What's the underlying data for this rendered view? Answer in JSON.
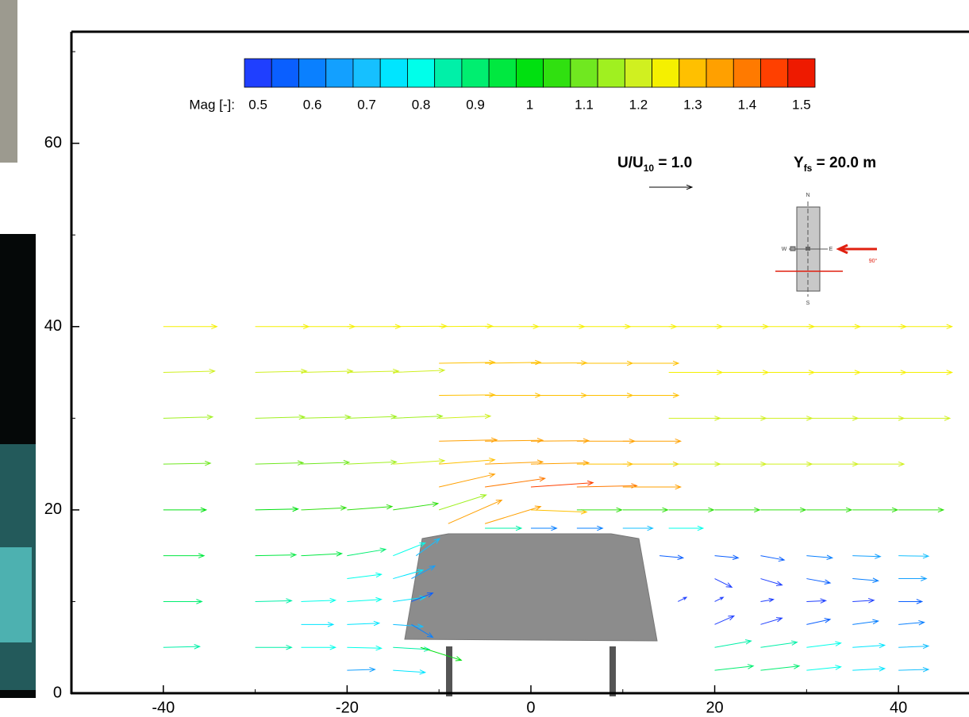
{
  "chart_data": {
    "type": "quiver",
    "xlim": [
      -50,
      47.5
    ],
    "ylim": [
      0,
      72
    ],
    "xticks": [
      -40,
      -20,
      0,
      20,
      40
    ],
    "yticks": [
      0,
      20,
      40,
      60
    ],
    "xminor": [
      -30,
      -10,
      10,
      30
    ],
    "yminor": [
      10,
      30,
      50,
      70
    ],
    "colorbar": {
      "label": "Mag [-]:",
      "lim": [
        0.475,
        1.525
      ],
      "ticks": [
        0.5,
        0.6,
        0.7,
        0.8,
        0.9,
        1,
        1.1,
        1.2,
        1.3,
        1.4,
        1.5
      ],
      "colors": [
        "#1f3fff",
        "#0a5fff",
        "#0a80ff",
        "#13a0ff",
        "#16c0ff",
        "#00e5ff",
        "#00ffea",
        "#00f0a8",
        "#00ee70",
        "#00e840",
        "#00e010",
        "#30e010",
        "#70e820",
        "#a0f020",
        "#d0f020",
        "#f5f000",
        "#ffc000",
        "#ffa000",
        "#ff7a00",
        "#ff4000",
        "#ee1a00"
      ]
    },
    "reference": {
      "label": [
        "U/U",
        "10",
        " = 1.0"
      ],
      "value": 1.0
    },
    "elevation_label": [
      "Y",
      "fs",
      " = 20.0 m"
    ],
    "inset": {
      "labels": [
        "N",
        "W",
        "E",
        "S",
        "90°"
      ]
    },
    "vectors": [
      [
        -40,
        40,
        1.25,
        0
      ],
      [
        -30,
        40,
        1.25,
        0
      ],
      [
        -25,
        40,
        1.25,
        0
      ],
      [
        -20,
        40,
        1.25,
        0
      ],
      [
        -15,
        40,
        1.25,
        0.01
      ],
      [
        -10,
        40,
        1.25,
        0.01
      ],
      [
        -5,
        40,
        1.25,
        0
      ],
      [
        0,
        40,
        1.25,
        0
      ],
      [
        5,
        40,
        1.25,
        0
      ],
      [
        10,
        40,
        1.25,
        0
      ],
      [
        15,
        40,
        1.25,
        0
      ],
      [
        20,
        40,
        1.25,
        0
      ],
      [
        25,
        40,
        1.25,
        0
      ],
      [
        30,
        40,
        1.25,
        0
      ],
      [
        35,
        40,
        1.25,
        0
      ],
      [
        40,
        40,
        1.25,
        0
      ],
      [
        -40,
        35,
        1.2,
        0.03
      ],
      [
        -30,
        35,
        1.2,
        0.03
      ],
      [
        -25,
        35,
        1.2,
        0.03
      ],
      [
        -20,
        35,
        1.2,
        0.03
      ],
      [
        -15,
        35,
        1.2,
        0.05
      ],
      [
        -10,
        36,
        1.3,
        0.02
      ],
      [
        -5,
        36,
        1.3,
        0.02
      ],
      [
        0,
        36,
        1.3,
        0.01
      ],
      [
        5,
        36,
        1.3,
        0
      ],
      [
        10,
        36,
        1.3,
        0
      ],
      [
        15,
        35,
        1.25,
        0
      ],
      [
        20,
        35,
        1.25,
        0
      ],
      [
        25,
        35,
        1.25,
        0
      ],
      [
        30,
        35,
        1.25,
        0
      ],
      [
        35,
        35,
        1.25,
        0
      ],
      [
        40,
        35,
        1.25,
        0
      ],
      [
        -10,
        32.5,
        1.3,
        0.01
      ],
      [
        -5,
        32.5,
        1.3,
        0
      ],
      [
        0,
        32.5,
        1.3,
        0
      ],
      [
        5,
        32.5,
        1.3,
        0
      ],
      [
        10,
        32.5,
        1.3,
        0
      ],
      [
        -40,
        30,
        1.15,
        0.03
      ],
      [
        -30,
        30,
        1.15,
        0.03
      ],
      [
        -25,
        30,
        1.15,
        0.03
      ],
      [
        -20,
        30,
        1.15,
        0.04
      ],
      [
        -15,
        30,
        1.15,
        0.05
      ],
      [
        -10,
        30,
        1.2,
        0.05
      ],
      [
        15,
        30,
        1.2,
        0
      ],
      [
        20,
        30,
        1.2,
        0
      ],
      [
        25,
        30,
        1.2,
        0
      ],
      [
        30,
        30,
        1.2,
        0
      ],
      [
        35,
        30,
        1.2,
        0
      ],
      [
        40,
        30,
        1.2,
        0
      ],
      [
        -10,
        27.5,
        1.35,
        0.03
      ],
      [
        -5,
        27.5,
        1.35,
        0.02
      ],
      [
        0,
        27.5,
        1.35,
        0.01
      ],
      [
        5,
        27.5,
        1.35,
        0
      ],
      [
        10,
        27.5,
        1.35,
        0
      ],
      [
        -40,
        25,
        1.1,
        0.02
      ],
      [
        -30,
        25,
        1.12,
        0.03
      ],
      [
        -25,
        25,
        1.12,
        0.04
      ],
      [
        -20,
        25,
        1.15,
        0.05
      ],
      [
        -15,
        25,
        1.2,
        0.08
      ],
      [
        -10,
        25,
        1.3,
        0.1
      ],
      [
        -5,
        25,
        1.35,
        0.05
      ],
      [
        0,
        25,
        1.35,
        0.03
      ],
      [
        5,
        25,
        1.3,
        0
      ],
      [
        10,
        25,
        1.3,
        0
      ],
      [
        15,
        25,
        1.2,
        0
      ],
      [
        20,
        25,
        1.2,
        0
      ],
      [
        25,
        25,
        1.2,
        0
      ],
      [
        30,
        25,
        1.2,
        0
      ],
      [
        35,
        25,
        1.2,
        0
      ],
      [
        -10,
        22.5,
        1.3,
        0.3
      ],
      [
        -5,
        22.5,
        1.4,
        0.2
      ],
      [
        0,
        22.5,
        1.45,
        0.1
      ],
      [
        5,
        22.5,
        1.4,
        0.03
      ],
      [
        10,
        22.5,
        1.35,
        0
      ],
      [
        -40,
        20,
        1.0,
        0
      ],
      [
        -30,
        20,
        1.0,
        0.02
      ],
      [
        -25,
        20,
        1.05,
        0.05
      ],
      [
        -20,
        20,
        1.05,
        0.08
      ],
      [
        -15,
        20,
        1.05,
        0.15
      ],
      [
        -10,
        20,
        1.1,
        0.35
      ],
      [
        0,
        20,
        1.3,
        -0.05
      ],
      [
        5,
        20,
        1.05,
        0
      ],
      [
        10,
        20,
        1.05,
        0
      ],
      [
        15,
        20,
        1.05,
        0
      ],
      [
        20,
        20,
        1.05,
        0
      ],
      [
        25,
        20,
        1.05,
        0
      ],
      [
        30,
        20,
        1.05,
        0
      ],
      [
        35,
        20,
        1.05,
        0
      ],
      [
        40,
        20,
        1.05,
        0
      ],
      [
        -9,
        18.5,
        1.25,
        0.55
      ],
      [
        -5,
        18.5,
        1.3,
        0.4
      ],
      [
        -5,
        18,
        0.85,
        0
      ],
      [
        0,
        18,
        0.6,
        0
      ],
      [
        5,
        18,
        0.6,
        0
      ],
      [
        10,
        18,
        0.7,
        0
      ],
      [
        15,
        18,
        0.8,
        0
      ],
      [
        -40,
        15,
        0.95,
        0
      ],
      [
        -30,
        15,
        0.95,
        0.02
      ],
      [
        -25,
        15,
        0.95,
        0.05
      ],
      [
        -20,
        15,
        0.9,
        0.15
      ],
      [
        -15,
        15,
        0.75,
        0.3
      ],
      [
        -12.5,
        15,
        0.55,
        0.4
      ],
      [
        14,
        15,
        0.55,
        -0.05
      ],
      [
        20,
        15,
        0.55,
        -0.05
      ],
      [
        25,
        15,
        0.55,
        -0.1
      ],
      [
        30,
        15,
        0.6,
        -0.05
      ],
      [
        35,
        15,
        0.65,
        -0.02
      ],
      [
        40,
        15,
        0.7,
        -0.01
      ],
      [
        -20,
        12.5,
        0.8,
        0.1
      ],
      [
        -15,
        12.5,
        0.7,
        0.2
      ],
      [
        -13,
        12.5,
        0.55,
        0.3
      ],
      [
        20,
        12.5,
        0.4,
        -0.2
      ],
      [
        25,
        12.5,
        0.5,
        -0.15
      ],
      [
        30,
        12.5,
        0.55,
        -0.1
      ],
      [
        35,
        12.5,
        0.6,
        -0.05
      ],
      [
        40,
        12.5,
        0.65,
        0
      ],
      [
        -40,
        10,
        0.9,
        0
      ],
      [
        -30,
        10,
        0.85,
        0.02
      ],
      [
        -25,
        10,
        0.8,
        0.03
      ],
      [
        -20,
        10,
        0.8,
        0.05
      ],
      [
        -15,
        10,
        0.75,
        0.1
      ],
      [
        -13,
        10,
        0.5,
        0.2
      ],
      [
        16,
        10,
        0.2,
        0.1
      ],
      [
        20,
        10,
        0.2,
        0.1
      ],
      [
        25,
        10,
        0.3,
        0.05
      ],
      [
        30,
        10,
        0.45,
        0.02
      ],
      [
        35,
        10,
        0.5,
        0.03
      ],
      [
        40,
        10,
        0.55,
        0
      ],
      [
        -25,
        7.5,
        0.75,
        0
      ],
      [
        -20,
        7.5,
        0.75,
        0.03
      ],
      [
        -15,
        7.5,
        0.7,
        -0.05
      ],
      [
        -13,
        7.5,
        0.5,
        -0.3
      ],
      [
        20,
        7.5,
        0.45,
        0.2
      ],
      [
        25,
        7.5,
        0.5,
        0.15
      ],
      [
        30,
        7.5,
        0.55,
        0.12
      ],
      [
        35,
        7.5,
        0.6,
        0.08
      ],
      [
        40,
        7.5,
        0.6,
        0.05
      ],
      [
        -40,
        5,
        0.85,
        0.02
      ],
      [
        -30,
        5,
        0.85,
        0
      ],
      [
        -25,
        5,
        0.8,
        0
      ],
      [
        -20,
        5,
        0.8,
        -0.02
      ],
      [
        -15,
        5,
        0.85,
        -0.05
      ],
      [
        -12,
        5,
        0.95,
        -0.3
      ],
      [
        20,
        5,
        0.85,
        0.15
      ],
      [
        25,
        5,
        0.85,
        0.12
      ],
      [
        30,
        5,
        0.8,
        0.1
      ],
      [
        35,
        5,
        0.75,
        0.05
      ],
      [
        40,
        5,
        0.7,
        0.03
      ],
      [
        -20,
        2.5,
        0.65,
        0.02
      ],
      [
        -15,
        2.5,
        0.75,
        -0.05
      ],
      [
        20,
        2.5,
        0.9,
        0.1
      ],
      [
        25,
        2.5,
        0.9,
        0.1
      ],
      [
        30,
        2.5,
        0.8,
        0.08
      ],
      [
        35,
        2.5,
        0.75,
        0.04
      ],
      [
        40,
        2.5,
        0.7,
        0.02
      ]
    ]
  }
}
